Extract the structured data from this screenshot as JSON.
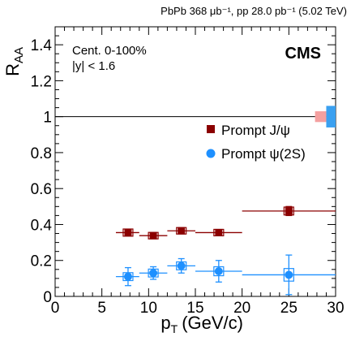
{
  "chart_data": {
    "type": "scatter",
    "header": "PbPb 368 μb⁻¹, pp 28.0 pb⁻¹ (5.02 TeV)",
    "experiment": "CMS",
    "annotations": [
      "Cent. 0-100%",
      "|y| < 1.6"
    ],
    "xlabel": "p_T (GeV/c)",
    "xlabel_main": "p",
    "xlabel_sub": "T",
    "xlabel_unit": "(GeV/c)",
    "ylabel": "R_AA",
    "ylabel_main": "R",
    "ylabel_sub": "AA",
    "xlim": [
      0,
      30
    ],
    "ylim": [
      0,
      1.5
    ],
    "xticks": [
      0,
      5,
      10,
      15,
      20,
      25,
      30
    ],
    "xtick_labels": [
      "0",
      "5",
      "10",
      "15",
      "20",
      "25",
      "30"
    ],
    "yticks": [
      0,
      0.2,
      0.4,
      0.6,
      0.8,
      1,
      1.2,
      1.4
    ],
    "ytick_labels": [
      "0",
      "0.2",
      "0.4",
      "0.6",
      "0.8",
      "1",
      "1.2",
      "1.4"
    ],
    "reference_line": 1,
    "legend_placement": "right-middle",
    "series": [
      {
        "name": "Prompt J/ψ",
        "marker": "square",
        "color": "#8b0000",
        "points": [
          {
            "x": 7.8,
            "xlo": 6.5,
            "xhi": 9.0,
            "y": 0.355,
            "ylo": 0.015,
            "yhi": 0.015,
            "sys": 0.02
          },
          {
            "x": 10.5,
            "xlo": 9.0,
            "xhi": 12.0,
            "y": 0.338,
            "ylo": 0.012,
            "yhi": 0.012,
            "sys": 0.018
          },
          {
            "x": 13.5,
            "xlo": 12.0,
            "xhi": 15.0,
            "y": 0.365,
            "ylo": 0.012,
            "yhi": 0.012,
            "sys": 0.018
          },
          {
            "x": 17.5,
            "xlo": 15.0,
            "xhi": 20.0,
            "y": 0.355,
            "ylo": 0.015,
            "yhi": 0.015,
            "sys": 0.018
          },
          {
            "x": 25.0,
            "xlo": 20.0,
            "xhi": 30.0,
            "y": 0.475,
            "ylo": 0.025,
            "yhi": 0.025,
            "sys": 0.022
          }
        ]
      },
      {
        "name": "Prompt ψ(2S)",
        "marker": "circle",
        "color": "#1e90ff",
        "points": [
          {
            "x": 7.8,
            "xlo": 6.5,
            "xhi": 9.0,
            "y": 0.11,
            "ylo": 0.05,
            "yhi": 0.05,
            "sys": 0.022
          },
          {
            "x": 10.5,
            "xlo": 9.0,
            "xhi": 12.0,
            "y": 0.13,
            "ylo": 0.035,
            "yhi": 0.035,
            "sys": 0.022
          },
          {
            "x": 13.5,
            "xlo": 12.0,
            "xhi": 15.0,
            "y": 0.17,
            "ylo": 0.04,
            "yhi": 0.04,
            "sys": 0.022
          },
          {
            "x": 17.5,
            "xlo": 15.0,
            "xhi": 20.0,
            "y": 0.14,
            "ylo": 0.06,
            "yhi": 0.06,
            "sys": 0.025
          },
          {
            "x": 25.0,
            "xlo": 20.0,
            "xhi": 30.0,
            "y": 0.12,
            "ylo": 0.11,
            "yhi": 0.11,
            "sys": 0.035
          }
        ]
      }
    ],
    "global_uncertainty": [
      {
        "series": "Prompt J/ψ",
        "color": "#f4a0a0",
        "xlo": 27.8,
        "xhi": 29.0,
        "ylo": 0.97,
        "yhi": 1.03
      },
      {
        "series": "Prompt ψ(2S)",
        "color": "#3aa0f0",
        "xlo": 29.0,
        "xhi": 30.0,
        "ylo": 0.94,
        "yhi": 1.06
      }
    ]
  }
}
